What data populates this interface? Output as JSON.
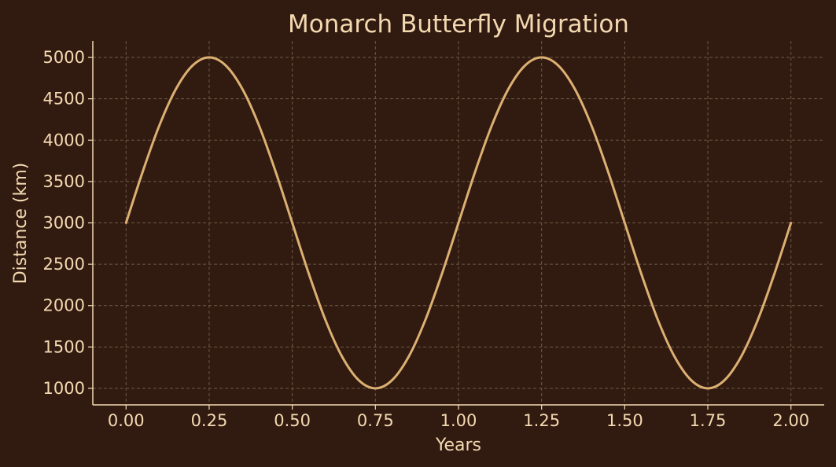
{
  "chart_data": {
    "type": "line",
    "title": "Monarch Butterfly Migration",
    "xlabel": "Years",
    "ylabel": "Distance (km)",
    "xlim": [
      -0.1,
      2.1
    ],
    "ylim": [
      800,
      5200
    ],
    "x_ticks": [
      0,
      0.25,
      0.5,
      0.75,
      1.0,
      1.25,
      1.5,
      1.75,
      2.0
    ],
    "x_tick_labels": [
      "0.00",
      "0.25",
      "0.50",
      "0.75",
      "1.00",
      "1.25",
      "1.50",
      "1.75",
      "2.00"
    ],
    "y_ticks": [
      1000,
      1500,
      2000,
      2500,
      3000,
      3500,
      4000,
      4500,
      5000
    ],
    "y_tick_labels": [
      "1000",
      "1500",
      "2000",
      "2500",
      "3000",
      "3500",
      "4000",
      "4500",
      "5000"
    ],
    "grid": true,
    "legend": "none",
    "series": [
      {
        "x": [
          0,
          0.05,
          0.1,
          0.15,
          0.2,
          0.25,
          0.3,
          0.35,
          0.4,
          0.45,
          0.5,
          0.55,
          0.6,
          0.65,
          0.7,
          0.75,
          0.8,
          0.85,
          0.9,
          0.95,
          1.0,
          1.05,
          1.1,
          1.15,
          1.2,
          1.25,
          1.3,
          1.35,
          1.4,
          1.45,
          1.5,
          1.55,
          1.6,
          1.65,
          1.7,
          1.75,
          1.8,
          1.85,
          1.9,
          1.95,
          2.0
        ],
        "values": [
          3000,
          3618,
          4176,
          4618,
          4902,
          5000,
          4902,
          4618,
          4176,
          3618,
          3000,
          2382,
          1824,
          1382,
          1098,
          1000,
          1098,
          1382,
          1824,
          2382,
          3000,
          3618,
          4176,
          4618,
          4902,
          5000,
          4902,
          4618,
          4176,
          3618,
          3000,
          2382,
          1824,
          1382,
          1098,
          1000,
          1098,
          1382,
          1824,
          2382,
          3000
        ]
      }
    ],
    "colors": {
      "background": "#311a10",
      "line": "#dcb072",
      "axis": "#f3d9b1",
      "text": "#f3d9b1",
      "grid": "#6b5a44"
    }
  }
}
